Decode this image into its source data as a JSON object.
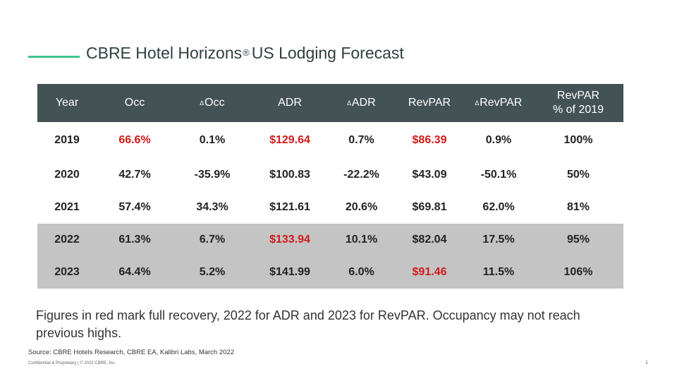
{
  "title": {
    "main": "CBRE Hotel Horizons",
    "registered": "®",
    "rest": "US Lodging Forecast"
  },
  "table": {
    "headers": [
      {
        "delta": "",
        "label": "Year"
      },
      {
        "delta": "",
        "label": "Occ"
      },
      {
        "delta": "∆",
        "label": "Occ"
      },
      {
        "delta": "",
        "label": "ADR"
      },
      {
        "delta": "∆",
        "label": "ADR"
      },
      {
        "delta": "",
        "label": "RevPAR"
      },
      {
        "delta": "∆",
        "label": "RevPAR"
      },
      {
        "delta": "",
        "label": "RevPAR",
        "label2": "% of  2019"
      }
    ],
    "rows": [
      {
        "cells": [
          "2019",
          "66.6%",
          "0.1%",
          "$129.64",
          "0.7%",
          "$86.39",
          "0.9%",
          "100%"
        ],
        "red": [
          1,
          3,
          5
        ],
        "shaded": false
      },
      {
        "cells": [
          "2020",
          "42.7%",
          "-35.9%",
          "$100.83",
          "-22.2%",
          "$43.09",
          "-50.1%",
          "50%"
        ],
        "red": [],
        "shaded": false
      },
      {
        "cells": [
          "2021",
          "57.4%",
          "34.3%",
          "$121.61",
          "20.6%",
          "$69.81",
          "62.0%",
          "81%"
        ],
        "red": [],
        "shaded": false
      },
      {
        "cells": [
          "2022",
          "61.3%",
          "6.7%",
          "$133.94",
          "10.1%",
          "$82.04",
          "17.5%",
          "95%"
        ],
        "red": [
          3
        ],
        "shaded": true
      },
      {
        "cells": [
          "2023",
          "64.4%",
          "5.2%",
          "$141.99",
          "6.0%",
          "$91.46",
          "11.5%",
          "106%"
        ],
        "red": [
          5
        ],
        "shaded": true
      }
    ]
  },
  "note": "Figures in red mark full recovery, 2022 for ADR and 2023 for RevPAR. Occupancy may not reach previous highs.",
  "source": "Source: CBRE Hotels Research, CBRE EA, Kalibri Labs, March 2022",
  "footer": "Confidential & Proprietary | © 2022 CBRE, Inc.",
  "page_number": "1",
  "colors": {
    "accent": "#3ec58a",
    "header_bg": "#435254",
    "highlight_red": "#d11a1a",
    "shaded_row": "#c4c4c4"
  }
}
